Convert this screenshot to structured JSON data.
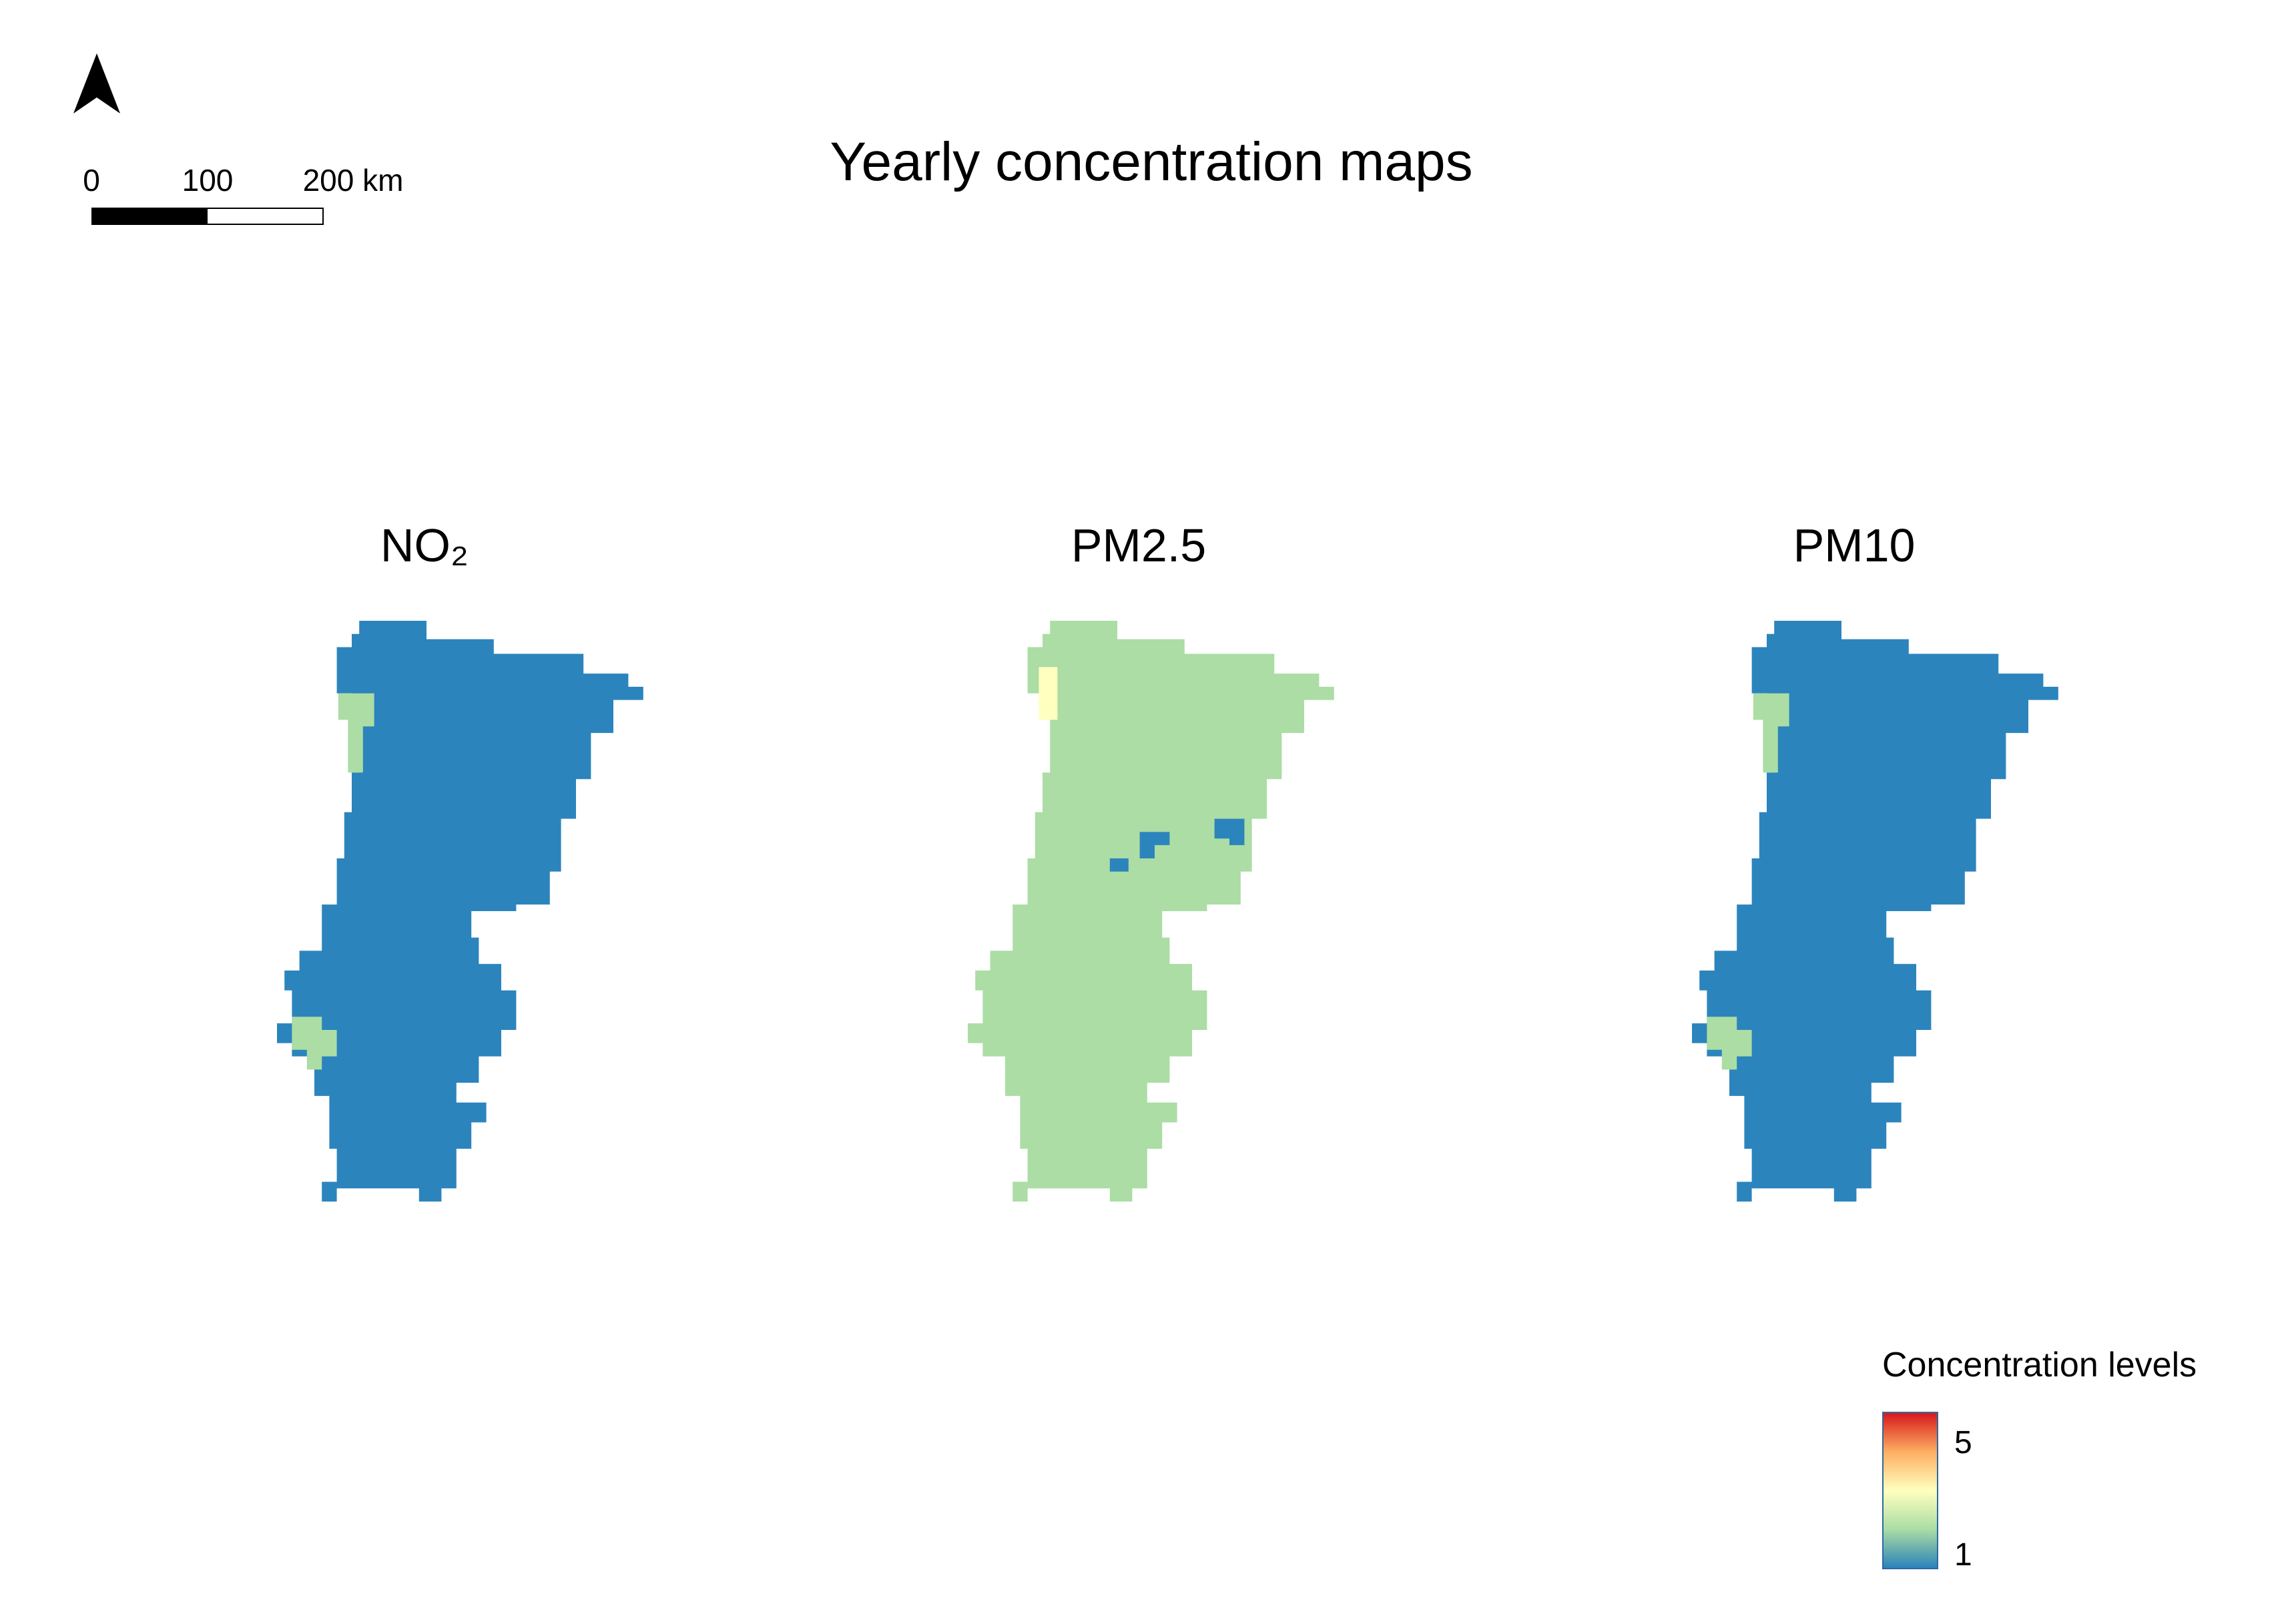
{
  "title": "Yearly concentration maps",
  "north_arrow": {
    "icon": "north-arrow-icon"
  },
  "scalebar": {
    "labels": [
      "0",
      "100",
      "200 km"
    ]
  },
  "panels": [
    {
      "name": "NO₂",
      "base_color": "#2c84bd",
      "secondary_color": "#abdda4"
    },
    {
      "name": "PM2.5",
      "base_color": "#abdda4",
      "secondary_color": "#2c84bd"
    },
    {
      "name": "PM10",
      "base_color": "#2c84bd",
      "secondary_color": "#abdda4"
    }
  ],
  "legend": {
    "title": "Concentration levels",
    "max_label": "5",
    "min_label": "1",
    "ramp_colors": [
      "#d7191c",
      "#fdae61",
      "#ffffbf",
      "#abdda4",
      "#2b83ba"
    ]
  },
  "colors": {
    "level_1": "#2c84bd",
    "level_low": "#abdda4",
    "level_mid": "#ffffbf",
    "background": "#ffffff"
  }
}
